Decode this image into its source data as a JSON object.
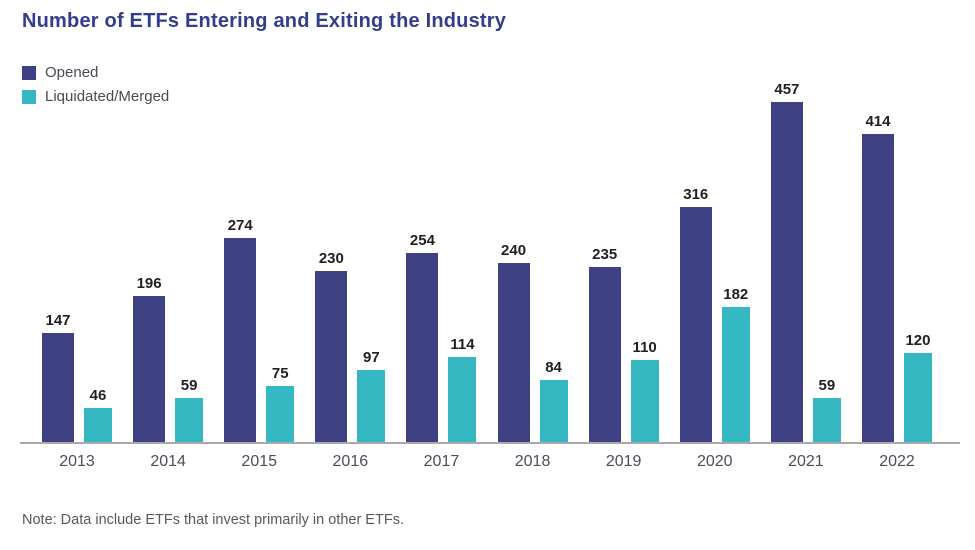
{
  "title": "Number of ETFs Entering and Exiting the Industry",
  "legend": [
    {
      "label": "Opened",
      "color": "#3E4183"
    },
    {
      "label": "Liquidated/Merged",
      "color": "#35B8C2"
    }
  ],
  "note": "Note: Data include ETFs that invest primarily in other ETFs.",
  "colors": {
    "title": "#333D8F",
    "opened_bar": "#3E4183",
    "liquidated_bar": "#35B8C2",
    "axis_line": "#A9A9AC",
    "value_label": "#231F20",
    "tick_label": "#4D4D5C"
  },
  "chart_data": {
    "type": "bar",
    "title": "Number of ETFs Entering and Exiting the Industry",
    "categories": [
      "2013",
      "2014",
      "2015",
      "2016",
      "2017",
      "2018",
      "2019",
      "2020",
      "2021",
      "2022"
    ],
    "series": [
      {
        "name": "Opened",
        "color": "#3E4183",
        "values": [
          147,
          196,
          274,
          230,
          254,
          240,
          235,
          316,
          457,
          414
        ]
      },
      {
        "name": "Liquidated/Merged",
        "color": "#35B8C2",
        "values": [
          46,
          59,
          75,
          97,
          114,
          84,
          110,
          182,
          59,
          120
        ]
      }
    ],
    "xlabel": "",
    "ylabel": "",
    "ylim": [
      0,
      480
    ],
    "grid": false,
    "legend_position": "top-left",
    "data_labels": true,
    "annotations": [
      "Note: Data include ETFs that invest primarily in other ETFs."
    ]
  }
}
